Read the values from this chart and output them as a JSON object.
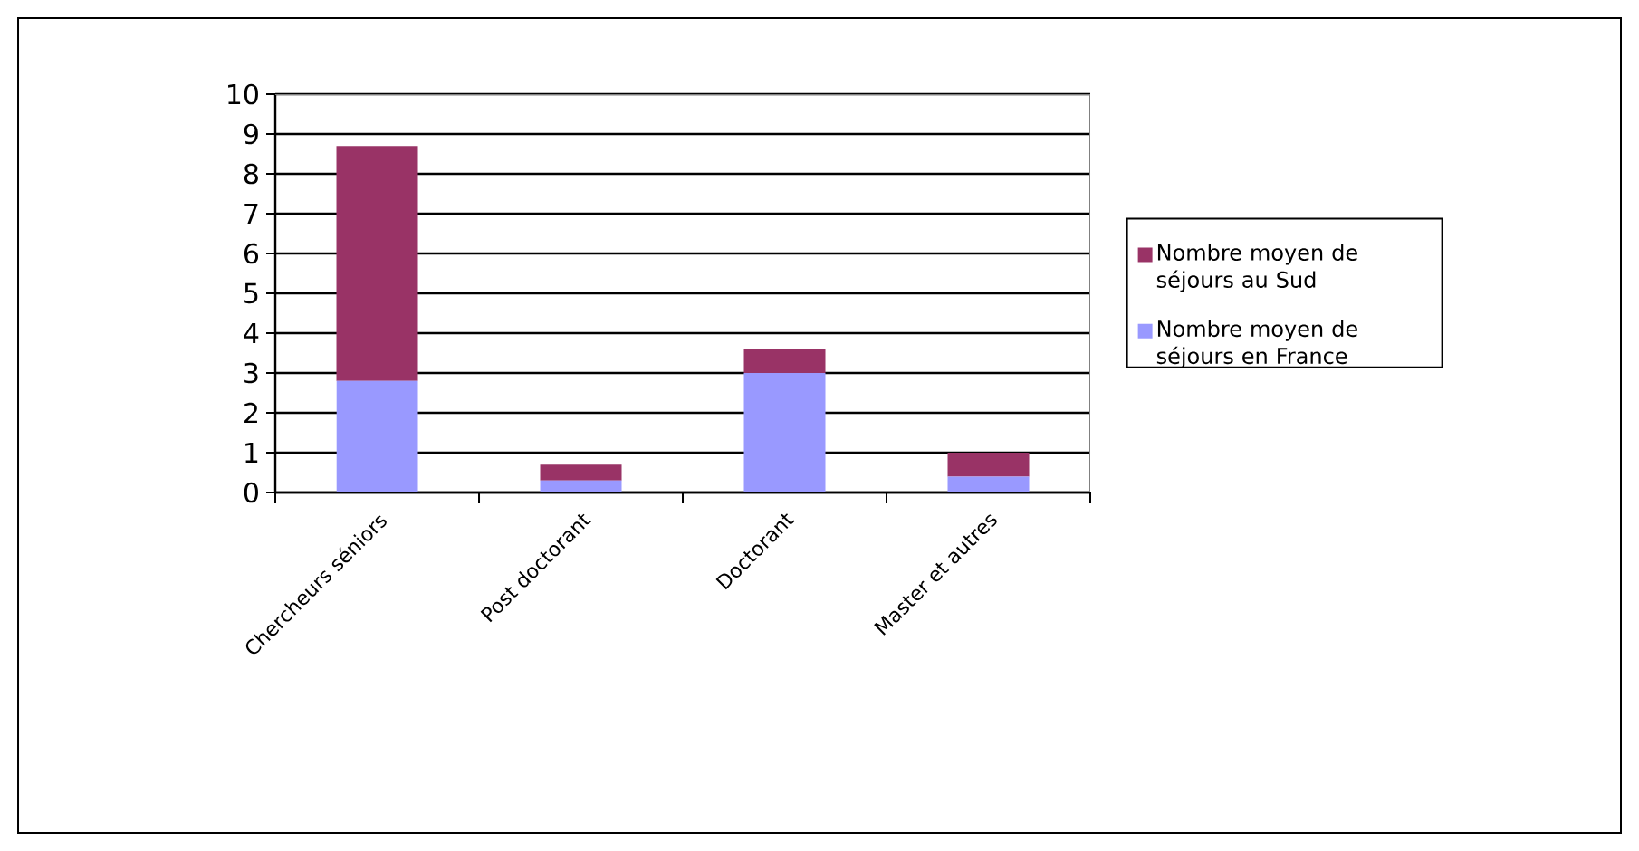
{
  "chart_data": {
    "type": "bar",
    "stacked": true,
    "categories": [
      "Chercheurs séniors",
      "Post doctorant",
      "Doctorant",
      "Master et autres"
    ],
    "series": [
      {
        "name": "Nombre moyen de séjours en France",
        "color": "#9999ff",
        "values": [
          2.8,
          0.3,
          3.0,
          0.4
        ]
      },
      {
        "name": "Nombre moyen de séjours au Sud",
        "color": "#993366",
        "values": [
          5.9,
          0.4,
          0.6,
          0.6
        ]
      }
    ],
    "ylim": [
      0,
      10
    ],
    "yticks": [
      0,
      1,
      2,
      3,
      4,
      5,
      6,
      7,
      8,
      9,
      10
    ],
    "grid": "y",
    "legend": "right"
  }
}
